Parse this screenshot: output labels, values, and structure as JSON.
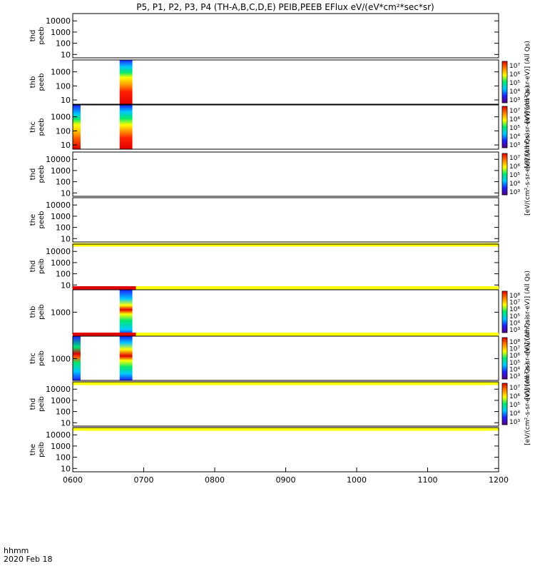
{
  "chart_data": {
    "type": "heatmap",
    "title": "P5, P1, P2, P3, P4 (TH-A,B,C,D,E) PEIB,PEEB EFlux eV/(eV*cm²*sec*sr)",
    "x_ticks": [
      "0600",
      "0700",
      "0800",
      "0900",
      "1000",
      "1100",
      "1200"
    ],
    "x_range": [
      600,
      1200
    ],
    "x_label": "hhmm",
    "date": "2020 Feb 18",
    "colormap": [
      "#5a0080",
      "#1e1eff",
      "#00c8ff",
      "#00e870",
      "#ffff00",
      "#ff8000",
      "#e00000"
    ],
    "panels": [
      {
        "line1": "thd",
        "line2": "peeb",
        "yticks": [
          "10000",
          "1000",
          "100",
          "10"
        ],
        "ylog": [
          5,
          45000
        ]
      },
      {
        "line1": "thb",
        "line2": "peeb",
        "yticks": [
          "1000",
          "100",
          "10"
        ],
        "ylog": [
          5,
          7000
        ],
        "blocks": [
          {
            "x": [
              666,
              684
            ],
            "stops": [
              [
                0,
                "#e00000"
              ],
              [
                0.28,
                "#ff2000"
              ],
              [
                0.45,
                "#ffa000"
              ],
              [
                0.6,
                "#ffff00"
              ],
              [
                0.72,
                "#00e870"
              ],
              [
                0.85,
                "#00c8ff"
              ],
              [
                1,
                "#1e1eff"
              ]
            ]
          }
        ],
        "colorbar": {
          "ticks": [
            "10⁷",
            "10⁶",
            "10⁵",
            "10⁴",
            "10³"
          ],
          "label": "[eV/(cm²-s-sr-eV)] (All Qs)"
        }
      },
      {
        "line1": "thc",
        "line2": "peeb",
        "yticks": [
          "1000",
          "100",
          "10"
        ],
        "ylog": [
          5,
          7000
        ],
        "blocks": [
          {
            "x": [
              600,
              611
            ],
            "stops": [
              [
                0,
                "#e00000"
              ],
              [
                0.25,
                "#ff6000"
              ],
              [
                0.4,
                "#ffc000"
              ],
              [
                0.55,
                "#ffff00"
              ],
              [
                0.68,
                "#00e870"
              ],
              [
                0.8,
                "#00c8ff"
              ],
              [
                1,
                "#1e1eff"
              ]
            ]
          },
          {
            "x": [
              666,
              684
            ],
            "stops": [
              [
                0,
                "#e00000"
              ],
              [
                0.25,
                "#ff2000"
              ],
              [
                0.4,
                "#ff9000"
              ],
              [
                0.55,
                "#ffff00"
              ],
              [
                0.7,
                "#00e870"
              ],
              [
                0.85,
                "#00c8ff"
              ],
              [
                1,
                "#1e1eff"
              ]
            ]
          }
        ],
        "colorbar": {
          "ticks": [
            "10⁷",
            "10⁶",
            "10⁵",
            "10⁴",
            "10³"
          ],
          "label": "[eV/(cm²-s-sr-eV)] (All Qs)"
        }
      },
      {
        "line1": "thd",
        "line2": "peeb",
        "yticks": [
          "10000",
          "1000",
          "100",
          "10"
        ],
        "ylog": [
          5,
          45000
        ],
        "colorbar": {
          "ticks": [
            "10⁷",
            "10⁶",
            "10⁵",
            "10⁴",
            "10³"
          ],
          "label": "[eV/(cm²-s-sr-eV)] (All Qs)"
        }
      },
      {
        "line1": "the",
        "line2": "peeb",
        "yticks": [
          "10000",
          "1000",
          "100",
          "10"
        ],
        "ylog": [
          5,
          45000
        ],
        "bottom_bars": [
          {
            "x": [
              600,
              1200
            ],
            "color": "#ffff00"
          }
        ]
      },
      {
        "line1": "thd",
        "line2": "peib",
        "yticks": [
          "10000",
          "1000",
          "100",
          "10"
        ],
        "ylog": [
          5,
          45000
        ]
      },
      {
        "line1": "thb",
        "line2": "peib",
        "yticks": [
          "1000"
        ],
        "ylog": [
          150,
          7000
        ],
        "top_bars": [
          {
            "x": [
              600,
              689
            ],
            "color": "#e00000"
          },
          {
            "x": [
              689,
              1200
            ],
            "color": "#ffff00"
          }
        ],
        "blocks": [
          {
            "x": [
              666,
              684
            ],
            "stops": [
              [
                0,
                "#1e1eff"
              ],
              [
                0.1,
                "#00c8ff"
              ],
              [
                0.3,
                "#00e870"
              ],
              [
                0.45,
                "#ffff00"
              ],
              [
                0.55,
                "#e00000"
              ],
              [
                0.65,
                "#ffff00"
              ],
              [
                0.8,
                "#00c8ff"
              ],
              [
                1,
                "#1e1eff"
              ]
            ]
          }
        ],
        "colorbar": {
          "ticks": [
            "10⁸",
            "10⁷",
            "10⁶",
            "10⁵",
            "10⁴",
            "10³"
          ],
          "label": "[eV/(cm²-s-sr-eV)] (All Qs)"
        }
      },
      {
        "line1": "thc",
        "line2": "peib",
        "yticks": [
          "1000"
        ],
        "ylog": [
          150,
          7000
        ],
        "top_bars": [
          {
            "x": [
              600,
              689
            ],
            "color": "#e00000"
          },
          {
            "x": [
              689,
              1200
            ],
            "color": "#ffff00"
          }
        ],
        "blocks": [
          {
            "x": [
              600,
              611
            ],
            "stops": [
              [
                0,
                "#1e1eff"
              ],
              [
                0.2,
                "#00c8ff"
              ],
              [
                0.4,
                "#00e870"
              ],
              [
                0.52,
                "#ff6000"
              ],
              [
                0.6,
                "#e00000"
              ],
              [
                0.75,
                "#00e870"
              ],
              [
                1,
                "#1e1eff"
              ]
            ]
          },
          {
            "x": [
              666,
              684
            ],
            "stops": [
              [
                0,
                "#1e1eff"
              ],
              [
                0.15,
                "#00c8ff"
              ],
              [
                0.3,
                "#00e870"
              ],
              [
                0.45,
                "#ffff00"
              ],
              [
                0.55,
                "#e00000"
              ],
              [
                0.7,
                "#ffff00"
              ],
              [
                0.85,
                "#00c8ff"
              ],
              [
                1,
                "#1e1eff"
              ]
            ]
          }
        ],
        "bottom_bars": [
          {
            "x": [
              600,
              1200
            ],
            "color": "#ffff00"
          }
        ],
        "colorbar": {
          "ticks": [
            "10⁸",
            "10⁷",
            "10⁶",
            "10⁵",
            "10⁴",
            "10³"
          ],
          "label": "[eV/(cm²-s-sr-eV)] (All Qs)"
        }
      },
      {
        "line1": "thd",
        "line2": "peib",
        "yticks": [
          "10000",
          "1000",
          "100",
          "10"
        ],
        "ylog": [
          5,
          45000
        ],
        "bottom_bars": [
          {
            "x": [
              600,
              1200
            ],
            "color": "#ffff00"
          }
        ],
        "colorbar": {
          "ticks": [
            "10⁷",
            "10⁶",
            "10⁵",
            "10⁴",
            "10³"
          ],
          "label": "[eV/(cm²-s-sr-eV)] (All Qs)"
        }
      },
      {
        "line1": "the",
        "line2": "peib",
        "yticks": [
          "10000",
          "1000",
          "100",
          "10"
        ],
        "ylog": [
          5,
          45000
        ]
      }
    ]
  }
}
